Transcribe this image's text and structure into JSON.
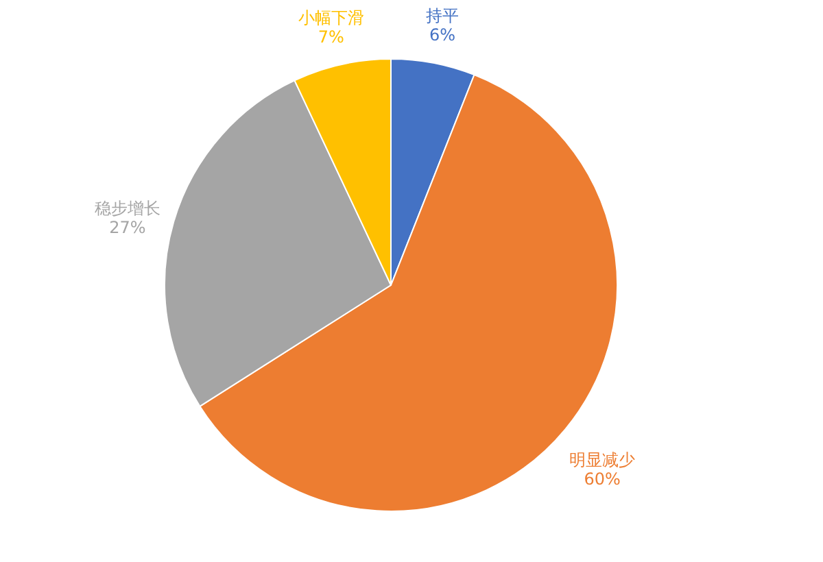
{
  "chart_data": {
    "type": "pie",
    "categories": [
      "持平",
      "明显减少",
      "稳步增长",
      "小幅下滑"
    ],
    "values": [
      6,
      60,
      27,
      7
    ],
    "colors": [
      "#4472c4",
      "#ed7d31",
      "#a5a5a5",
      "#ffc000"
    ],
    "value_labels": [
      "6%",
      "60%",
      "27%",
      "7%"
    ],
    "legend": false
  }
}
